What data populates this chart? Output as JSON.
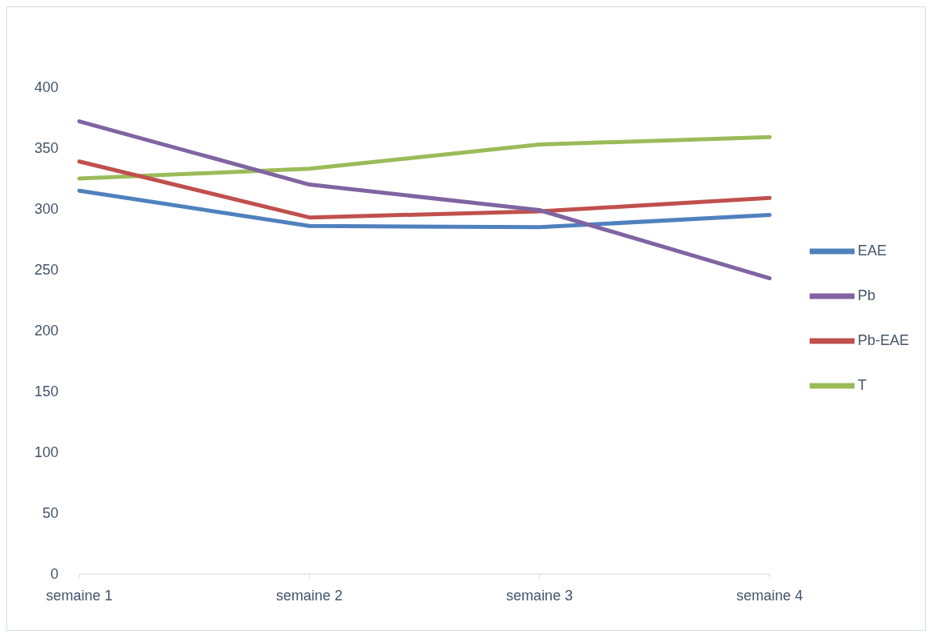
{
  "chart_data": {
    "type": "line",
    "categories": [
      "semaine 1",
      "semaine 2",
      "semaine 3",
      "semaine 4"
    ],
    "series": [
      {
        "name": "T",
        "color": "#9bbb59",
        "values": [
          325,
          333,
          353,
          359
        ]
      },
      {
        "name": "EAE",
        "color": "#4f81bd",
        "values": [
          315,
          286,
          285,
          295
        ]
      },
      {
        "name": "Pb-EAE",
        "color": "#c0504d",
        "values": [
          339,
          293,
          298,
          309
        ]
      },
      {
        "name": "Pb",
        "color": "#8064a2",
        "values": [
          372,
          320,
          299,
          243
        ]
      }
    ],
    "ylim": [
      0,
      400
    ],
    "yticks": [
      0,
      50,
      100,
      150,
      200,
      250,
      300,
      350,
      400
    ],
    "grid": false,
    "legend": "right",
    "marker": "none",
    "line_style": "solid"
  }
}
